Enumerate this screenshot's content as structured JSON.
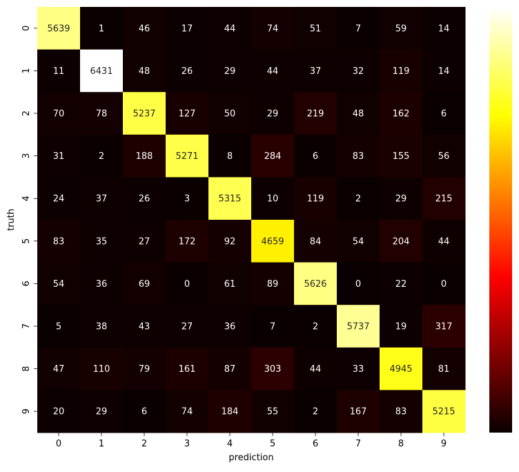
{
  "chart_data": {
    "type": "heatmap",
    "xlabel": "prediction",
    "ylabel": "truth",
    "x_categories": [
      "0",
      "1",
      "2",
      "3",
      "4",
      "5",
      "6",
      "7",
      "8",
      "9"
    ],
    "y_categories": [
      "0",
      "1",
      "2",
      "3",
      "4",
      "5",
      "6",
      "7",
      "8",
      "9"
    ],
    "matrix": [
      [
        5639,
        1,
        46,
        17,
        44,
        74,
        51,
        7,
        59,
        14
      ],
      [
        11,
        6431,
        48,
        26,
        29,
        44,
        37,
        32,
        119,
        14
      ],
      [
        70,
        78,
        5237,
        127,
        50,
        29,
        219,
        48,
        162,
        6
      ],
      [
        31,
        2,
        188,
        5271,
        8,
        284,
        6,
        83,
        155,
        56
      ],
      [
        24,
        37,
        26,
        3,
        5315,
        10,
        119,
        2,
        29,
        215
      ],
      [
        83,
        35,
        27,
        172,
        92,
        4659,
        84,
        54,
        204,
        44
      ],
      [
        54,
        36,
        69,
        0,
        61,
        89,
        5626,
        0,
        22,
        0
      ],
      [
        5,
        38,
        43,
        27,
        36,
        7,
        2,
        5737,
        19,
        317
      ],
      [
        47,
        110,
        79,
        161,
        87,
        303,
        44,
        33,
        4945,
        81
      ],
      [
        20,
        29,
        6,
        74,
        184,
        55,
        2,
        167,
        83,
        5215
      ]
    ],
    "colormap": "hot",
    "value_range": [
      0,
      6431
    ],
    "colorbar": true,
    "colorbar_ticks": [],
    "annotations": true,
    "grid": false
  }
}
